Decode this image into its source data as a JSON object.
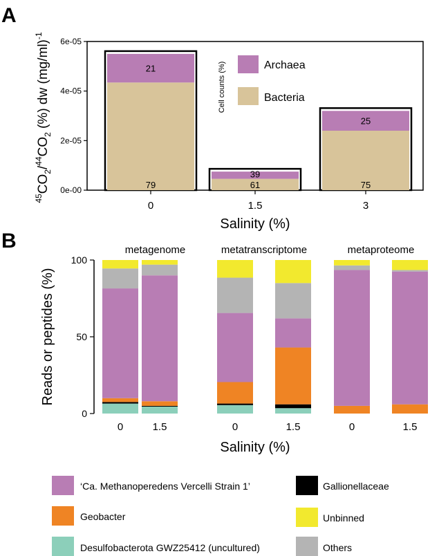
{
  "panel_a_label": "A",
  "panel_b_label": "B",
  "legend_a": {
    "inset_label": "Cell counts (%)",
    "items": [
      {
        "name": "Archaea",
        "color": "#b87db4"
      },
      {
        "name": "Bacteria",
        "color": "#d8c49a"
      }
    ]
  },
  "legend_b": {
    "items": [
      {
        "name": "‘Ca. Methanoperedens Vercelli Strain 1’",
        "color": "#b87db4"
      },
      {
        "name": "Gallionellaceae",
        "color": "#000000"
      },
      {
        "name": "Geobacter",
        "color": "#ef8424"
      },
      {
        "name": "Unbinned",
        "color": "#f2e92e"
      },
      {
        "name": "Desulfobacterota GWZ25412 (uncultured)",
        "color": "#8ccfba"
      },
      {
        "name": "Others",
        "color": "#b4b4b4"
      }
    ]
  },
  "chart_data": [
    {
      "type": "bar",
      "title": "",
      "ylabel_parts": {
        "sup1": "45",
        "co2_1": "CO",
        "sub1": "2",
        "slash": "/",
        "sup2": "44",
        "co2_2": "CO",
        "sub2": "2",
        "rest": " (%) dw (mg/ml)",
        "sup3": "-1"
      },
      "xlabel": "Salinity (%)",
      "ylim": [
        0,
        6e-05
      ],
      "yticks": [
        0,
        2e-05,
        4e-05,
        6e-05
      ],
      "ytick_labels": [
        "0e-00",
        "2e-05",
        "4e-05",
        "6e-05"
      ],
      "categories": [
        "0",
        "1.5",
        "3"
      ],
      "totals": [
        5.5e-05,
        7.5e-06,
        3.2e-05
      ],
      "series": [
        {
          "name": "Bacteria",
          "percent_labels": [
            "79",
            "61",
            "75"
          ]
        },
        {
          "name": "Archaea",
          "percent_labels": [
            "21",
            "39",
            "25"
          ]
        }
      ]
    },
    {
      "type": "bar",
      "stacked": true,
      "ylabel": "Reads or peptides (%)",
      "xlabel": "Salinity (%)",
      "ylim": [
        0,
        100
      ],
      "yticks": [
        0,
        50,
        100
      ],
      "ytick_labels": [
        "0",
        "50",
        "100"
      ],
      "groups": [
        "metagenome",
        "metatranscriptome",
        "metaproteome"
      ],
      "categories": [
        "0",
        "1.5",
        "0",
        "1.5",
        "0",
        "1.5"
      ],
      "series": [
        {
          "name": "Desulfobacterota GWZ25412 (uncultured)",
          "values": [
            6.5,
            4.5,
            5.5,
            3.5,
            0,
            0
          ]
        },
        {
          "name": "Gallionellaceae",
          "values": [
            1,
            0.5,
            1,
            2.5,
            0,
            0
          ]
        },
        {
          "name": "Geobacter",
          "values": [
            2.5,
            3,
            14,
            37,
            5,
            6
          ]
        },
        {
          "name": "‘Ca. Methanoperedens Vercelli Strain 1’",
          "values": [
            71.5,
            82,
            45,
            19,
            88.5,
            86.5
          ]
        },
        {
          "name": "Others",
          "values": [
            13,
            7,
            23,
            23,
            3,
            1
          ]
        },
        {
          "name": "Unbinned",
          "values": [
            5.5,
            3,
            11.5,
            15,
            3.5,
            6.5
          ]
        }
      ]
    }
  ]
}
